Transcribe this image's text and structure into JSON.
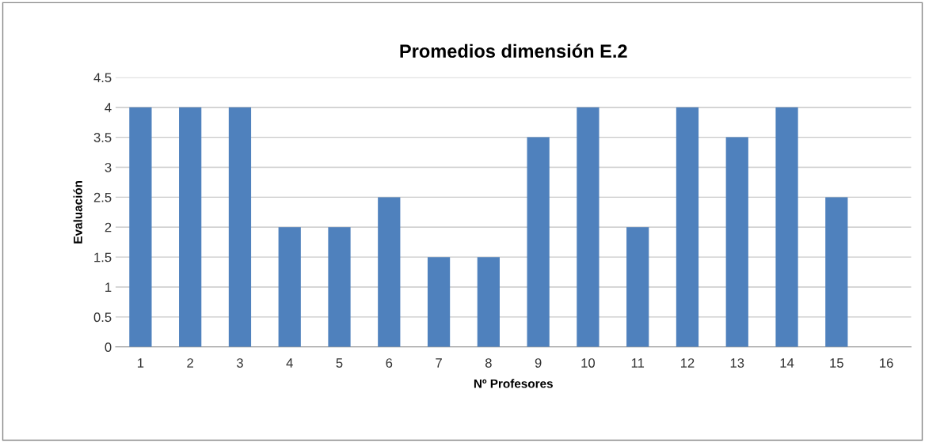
{
  "chart_data": {
    "type": "bar",
    "title": "Promedios dimensión E.2",
    "xlabel": "Nº Profesores",
    "ylabel": "Evaluación",
    "categories": [
      "1",
      "2",
      "3",
      "4",
      "5",
      "6",
      "7",
      "8",
      "9",
      "10",
      "11",
      "12",
      "13",
      "14",
      "15",
      "16"
    ],
    "values": [
      4,
      4,
      4,
      2,
      2,
      2.5,
      1.5,
      1.5,
      3.5,
      4,
      2,
      4,
      3.5,
      4,
      2.5,
      null
    ],
    "color": "#4f81bd",
    "ylim": [
      0,
      4.5
    ],
    "yticks": [
      0,
      0.5,
      1,
      1.5,
      2,
      2.5,
      3,
      3.5,
      4,
      4.5
    ],
    "grid": "y",
    "legend": false
  }
}
